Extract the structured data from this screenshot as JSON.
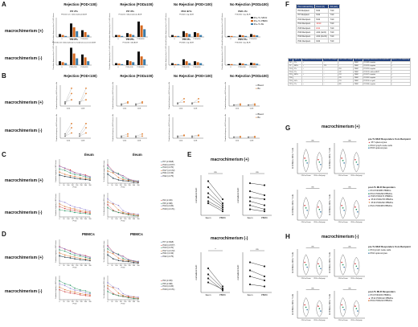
{
  "panels": {
    "A": "A",
    "B": "B",
    "C": "C",
    "D": "D",
    "E": "E",
    "F": "F",
    "G": "G",
    "H": "H"
  },
  "rows": {
    "pos": "macrochimerism (+)",
    "neg": "macrochimerism (-)"
  },
  "col_titles": {
    "rej_pod100": "Rejection (POD<100)",
    "rej_pod100p": "Rejection (POD≥100)",
    "norej_pod100": "No Rejection (POD<100)",
    "norej_pod100p": "No Rejection (POD≥100)"
  },
  "panelA": {
    "ylabel": "Cumulative frequency of pre-Tx HVG clones",
    "legend": [
      "Pre-Tx SPLN",
      "Pre-Tx PBMC",
      "Pre-Tx Bx"
    ],
    "legend_colors": [
      "#111111",
      "#d4681f",
      "#3a7ba8"
    ],
    "pos_subtitles": [
      "PI7 2Tx",
      "PI7 3Tx",
      "PI10 4hTx",
      "PI22 sTx"
    ],
    "pos_captions": [
      "POD217-21: mild-moderate ACR",
      "POD221: mild-moderate ACR",
      "POD43: neg. ACR",
      "POD300: neg. ACR"
    ],
    "neg_subtitles": [
      "PI4 2Tx",
      "PI5 2Tx",
      "PI5 sTx",
      "PI21 sTx"
    ],
    "neg_captions": [
      "POD141-64: mild-moderate to moderate-to-severe ACR",
      "POD245: mild ACR",
      "POD66: neg. ACR",
      "POD306: neg. ACR"
    ],
    "xcats": [
      "0",
      "POD<100",
      "POD≥100"
    ]
  },
  "panelB": {
    "ylabel": "Cumulative frequency of HVG clones in Bx",
    "legend": [
      "Blood",
      "Bx"
    ],
    "legend_colors": [
      "#777777",
      "#e07b2a"
    ],
    "xcats": [
      "CD4",
      "CD8"
    ]
  },
  "panelC": {
    "title": "Ileum",
    "ylabel_left": "Cumulative frequency of HVG clones",
    "ylabel_right": "% of detectable unique HVG clones",
    "xlabel": "POD",
    "xticks": [
      "0",
      "50",
      "100",
      "150",
      "200",
      "250",
      "300",
      "350"
    ],
    "legend_pos": [
      "PI7 (n=918)",
      "PI10 (n=677)",
      "PI13 (n=70)",
      "PI17 (n=172)",
      "PI21 (n=43)",
      "PI22 (n=75)"
    ],
    "legend_neg": [
      "PI4 (n=46)",
      "PI5 (n=98)",
      "PI14 (n=26)",
      "PI19 (n=171)"
    ],
    "colors_pos": [
      "#3a7ba8",
      "#c33",
      "#1a8f5a",
      "#d4681f",
      "#333333",
      "#8a7bd0"
    ],
    "colors_neg": [
      "#c33",
      "#1a8f5a",
      "#8a7bd0",
      "#d4681f"
    ]
  },
  "panelD": {
    "title": "PBMCs",
    "legend_pos": [
      "PI7 (n=918)",
      "PI10 (n=677)",
      "PI13 (n=70)",
      "PI17 (n=172)",
      "PI21 (n=43)",
      "PI22 (n=75)"
    ],
    "legend_neg": [
      "PI4 (n=46)",
      "PI5 (n=98)",
      "PI14 (n=26)",
      "PI19 (n=171)"
    ]
  },
  "panelE": {
    "title_pos": "macrochimerism (+)",
    "title_neg": "macrochimerism (-)",
    "ylabel": "normalized AUC",
    "xcats": [
      "Ileum",
      "PBMC"
    ],
    "sig": [
      "ns",
      "ns",
      "*",
      "ns"
    ]
  },
  "panelF": {
    "headers": [
      "HLA-mismatching",
      "Donor (D)",
      "3rd party"
    ],
    "rows": [
      [
        "PI4 Recipient",
        "5/10",
        "7/10"
      ],
      [
        "PI7 Recipient",
        "5/10",
        "7/10"
      ],
      [
        "PI13 Recipient",
        "5/10",
        "7/10"
      ],
      [
        "PI14 Recipient",
        "10/10",
        "7/10"
      ],
      [
        "PI15 Recipient",
        "8/10",
        "7/10"
      ],
      [
        "PI16 Recipient",
        "4/10 (1st D)",
        "7/10"
      ],
      [
        "PI19 Recipient",
        "4/10 (2nd D)",
        "7/10"
      ],
      [
        "PI21 Recipient",
        "9/10",
        "7/10"
      ]
    ],
    "red_cells": [
      "10/10",
      "8/10"
    ],
    "pt_headers": [
      "Ptd",
      "Type of Tx",
      "Presence of macrochimerism",
      "Pre-Tx MLR sample",
      "Post-Tx MLR sample",
      "Cell source",
      "Histologic observation in Bx at post-MLR",
      "Sent for TCRD sequencing"
    ],
    "pt_rows": [
      [
        "PI4",
        "2Tx",
        "+",
        "-",
        "-",
        "PBMC",
        "POD385: negative",
        "+"
      ],
      [
        "PI7",
        "BMTx",
        "+",
        "273",
        "-",
        "PBMC",
        "POD235: negative",
        "+"
      ],
      [
        "PI13",
        "3Tx",
        "+",
        "-",
        "293",
        "PBMC",
        "POD293: negative",
        "+"
      ],
      [
        "PI14",
        "2Tx",
        "-",
        "-",
        "142",
        "PBMC",
        "POD139: mild-mod ACR",
        "+"
      ],
      [
        "PI15",
        "BMTx",
        "+",
        "-",
        "274",
        "PBMC",
        "POD275: negative",
        "+"
      ],
      [
        "PI16",
        "",
        "",
        "-",
        "278",
        "PBMC",
        "POD262: negative",
        "+"
      ],
      [
        "PI19",
        "4hTx",
        "-",
        "-",
        "213",
        "PBMC",
        "POD196: no graft",
        "+"
      ],
      [
        "PI21",
        "2Tx",
        "+",
        "-",
        "305",
        "PBMC",
        "POD306: negative",
        "+"
      ]
    ]
  },
  "panelG": {
    "title": "macrochimerism (+)",
    "ylabel": "% CFSElow CD4+ T cells",
    "xcats": [
      "CD4 vs Donor",
      "CD4 vs 3rd party"
    ],
    "ns": "ns",
    "legend_pre_title": "pre-Tx MLR Responders from Recipient",
    "legend_pre": [
      "PI7 splenocytes",
      "PI13 lymph node cells",
      "PI15 splenocytes"
    ],
    "legend_post_title": "post-Tx MLR Responders",
    "legend_post": [
      "PI4 POD385 PBMCs",
      "PI13 POD293 PBMCs",
      "PI15 POD274 PBMCs",
      "PI16 POD278 PBMCs",
      "PI16 POD262 PBMCs",
      "PI21 POD305 PBMCs"
    ]
  },
  "panelH": {
    "title": "macrochimerism (-)",
    "ylabel": "% CFSElow CD4+ T cells",
    "xcats": [
      "CD4 vs Donor",
      "CD4 vs 3rd party"
    ],
    "ns": "ns",
    "legend_pre_title": "pre-Tx MLR Responders from Recipient",
    "legend_pre": [
      "PI4 lymph node cells",
      "PI10 splenocytes"
    ],
    "legend_post_title": "post-Tx MLR Responders",
    "legend_post": [
      "PI4 POD203 PBMCs",
      "PI14 POD142 PBMCs",
      "PI19 POD213 PBMCs"
    ]
  }
}
